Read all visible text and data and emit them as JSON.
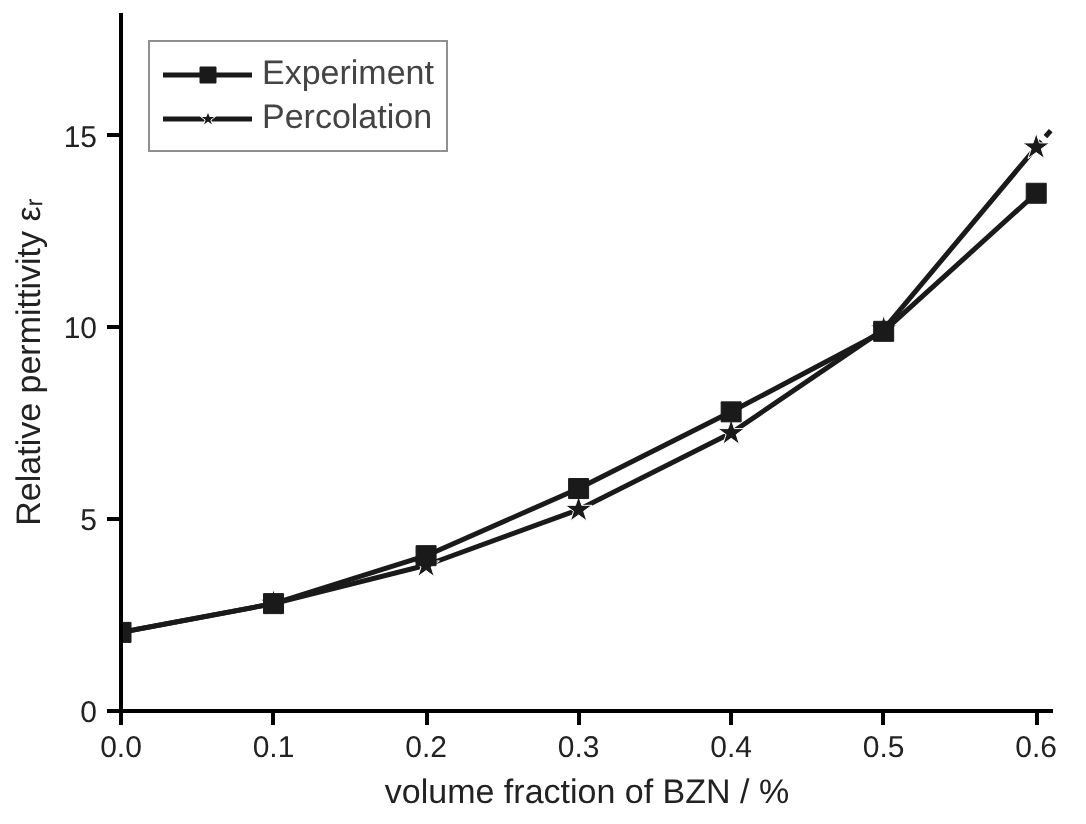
{
  "chart_data": {
    "type": "line",
    "xlabel": "volume fraction of BZN / %",
    "ylabel": "Relative permittivity εᵣ",
    "x": [
      0.0,
      0.1,
      0.2,
      0.3,
      0.4,
      0.5,
      0.6
    ],
    "series": [
      {
        "name": "Experiment",
        "color": "#1a1a1a",
        "marker": "square",
        "values": [
          2.05,
          2.8,
          4.05,
          5.8,
          7.8,
          9.9,
          13.5
        ]
      },
      {
        "name": "Percolation",
        "color": "#1a1a1a",
        "marker": "star",
        "values": [
          2.05,
          2.8,
          3.8,
          5.25,
          7.25,
          9.95,
          14.7
        ]
      },
      {
        "color": "#1a1a1a",
        "marker": "none",
        "line_style": "dashed",
        "x": [
          0.6,
          0.611
        ],
        "values": [
          14.7,
          15.2
        ]
      }
    ],
    "xlim": [
      0.0,
      0.611
    ],
    "ylim": [
      0,
      18.2
    ],
    "xticks": [
      {
        "value": 0.0,
        "label": "0.0"
      },
      0.1,
      0.2,
      0.3,
      0.4,
      0.5,
      0.6
    ],
    "yticks": [
      0,
      5,
      10,
      15
    ],
    "grid": false,
    "legend": "top left",
    "line_style": "solid"
  }
}
